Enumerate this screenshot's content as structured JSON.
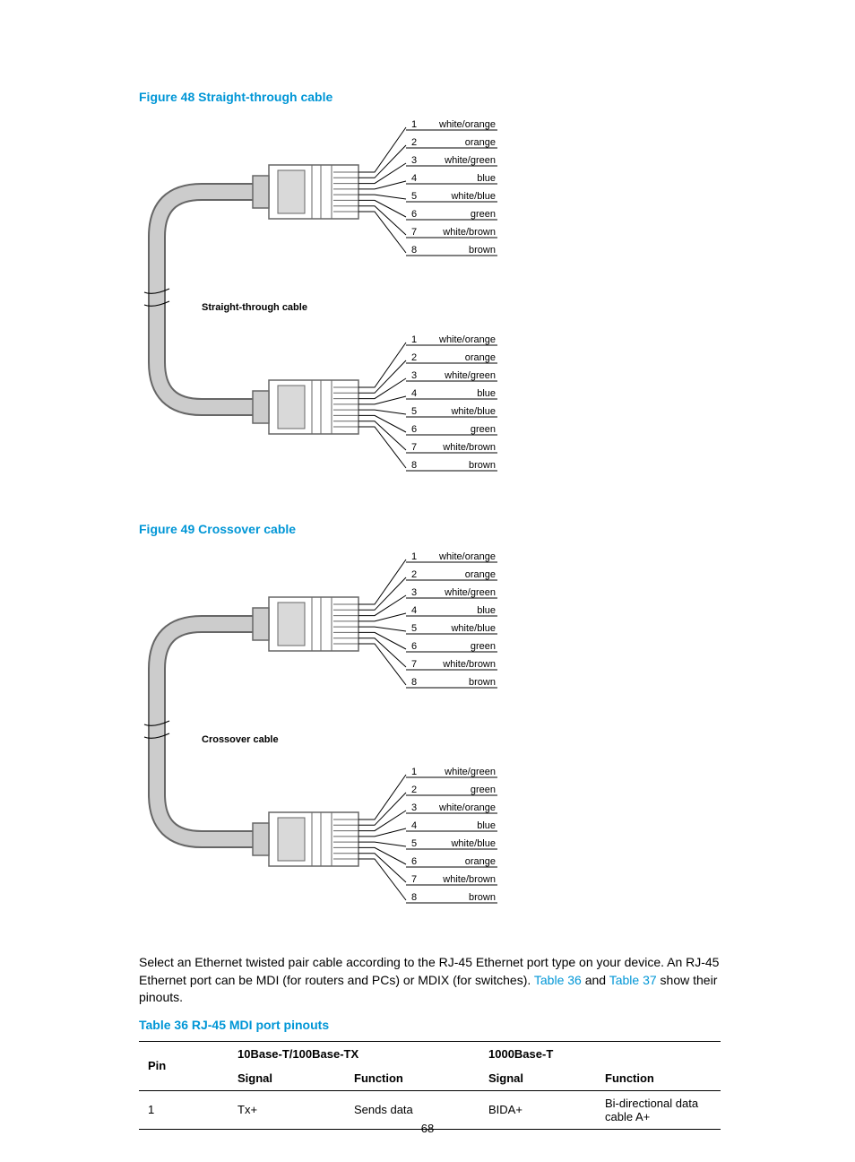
{
  "figure48": {
    "caption": "Figure 48 Straight-through cable",
    "center_label": "Straight-through cable",
    "top_pins": [
      {
        "n": "1",
        "label": "white/orange"
      },
      {
        "n": "2",
        "label": "orange"
      },
      {
        "n": "3",
        "label": "white/green"
      },
      {
        "n": "4",
        "label": "blue"
      },
      {
        "n": "5",
        "label": "white/blue"
      },
      {
        "n": "6",
        "label": "green"
      },
      {
        "n": "7",
        "label": "white/brown"
      },
      {
        "n": "8",
        "label": "brown"
      }
    ],
    "bottom_pins": [
      {
        "n": "1",
        "label": "white/orange"
      },
      {
        "n": "2",
        "label": "orange"
      },
      {
        "n": "3",
        "label": "white/green"
      },
      {
        "n": "4",
        "label": "blue"
      },
      {
        "n": "5",
        "label": "white/blue"
      },
      {
        "n": "6",
        "label": "green"
      },
      {
        "n": "7",
        "label": "white/brown"
      },
      {
        "n": "8",
        "label": "brown"
      }
    ]
  },
  "figure49": {
    "caption": "Figure 49 Crossover cable",
    "center_label": "Crossover cable",
    "top_pins": [
      {
        "n": "1",
        "label": "white/orange"
      },
      {
        "n": "2",
        "label": "orange"
      },
      {
        "n": "3",
        "label": "white/green"
      },
      {
        "n": "4",
        "label": "blue"
      },
      {
        "n": "5",
        "label": "white/blue"
      },
      {
        "n": "6",
        "label": "green"
      },
      {
        "n": "7",
        "label": "white/brown"
      },
      {
        "n": "8",
        "label": "brown"
      }
    ],
    "bottom_pins": [
      {
        "n": "1",
        "label": "white/green"
      },
      {
        "n": "2",
        "label": "green"
      },
      {
        "n": "3",
        "label": "white/orange"
      },
      {
        "n": "4",
        "label": "blue"
      },
      {
        "n": "5",
        "label": "white/blue"
      },
      {
        "n": "6",
        "label": "orange"
      },
      {
        "n": "7",
        "label": "white/brown"
      },
      {
        "n": "8",
        "label": "brown"
      }
    ]
  },
  "paragraph": {
    "pre": "Select an Ethernet twisted pair cable according to the RJ-45 Ethernet port type on your device. An RJ-45 Ethernet port can be MDI (for routers and PCs) or MDIX (for switches). ",
    "ref1": "Table 36",
    "mid": " and ",
    "ref2": "Table 37",
    "post": " show their pinouts."
  },
  "table36": {
    "caption": "Table 36 RJ-45 MDI port pinouts",
    "head_pin": "Pin",
    "head_10": "10Base-T/100Base-TX",
    "head_1000": "1000Base-T",
    "sub_signal": "Signal",
    "sub_function": "Function",
    "row1": {
      "pin": "1",
      "sig10": "Tx+",
      "fn10": "Sends data",
      "sig1000": "BIDA+",
      "fn1000": "Bi-directional data cable A+"
    }
  },
  "style": {
    "accent": "#0096d6",
    "cable_fill": "#cccccc",
    "cable_stroke": "#666666",
    "connector_fill": "#ffffff",
    "connector_stroke": "#666666",
    "connector_inner": "#d9d9d9",
    "line_color": "#000000",
    "text_color": "#000000",
    "label_fontsize": 11,
    "pin_fontsize": 11
  },
  "page_number": "68"
}
